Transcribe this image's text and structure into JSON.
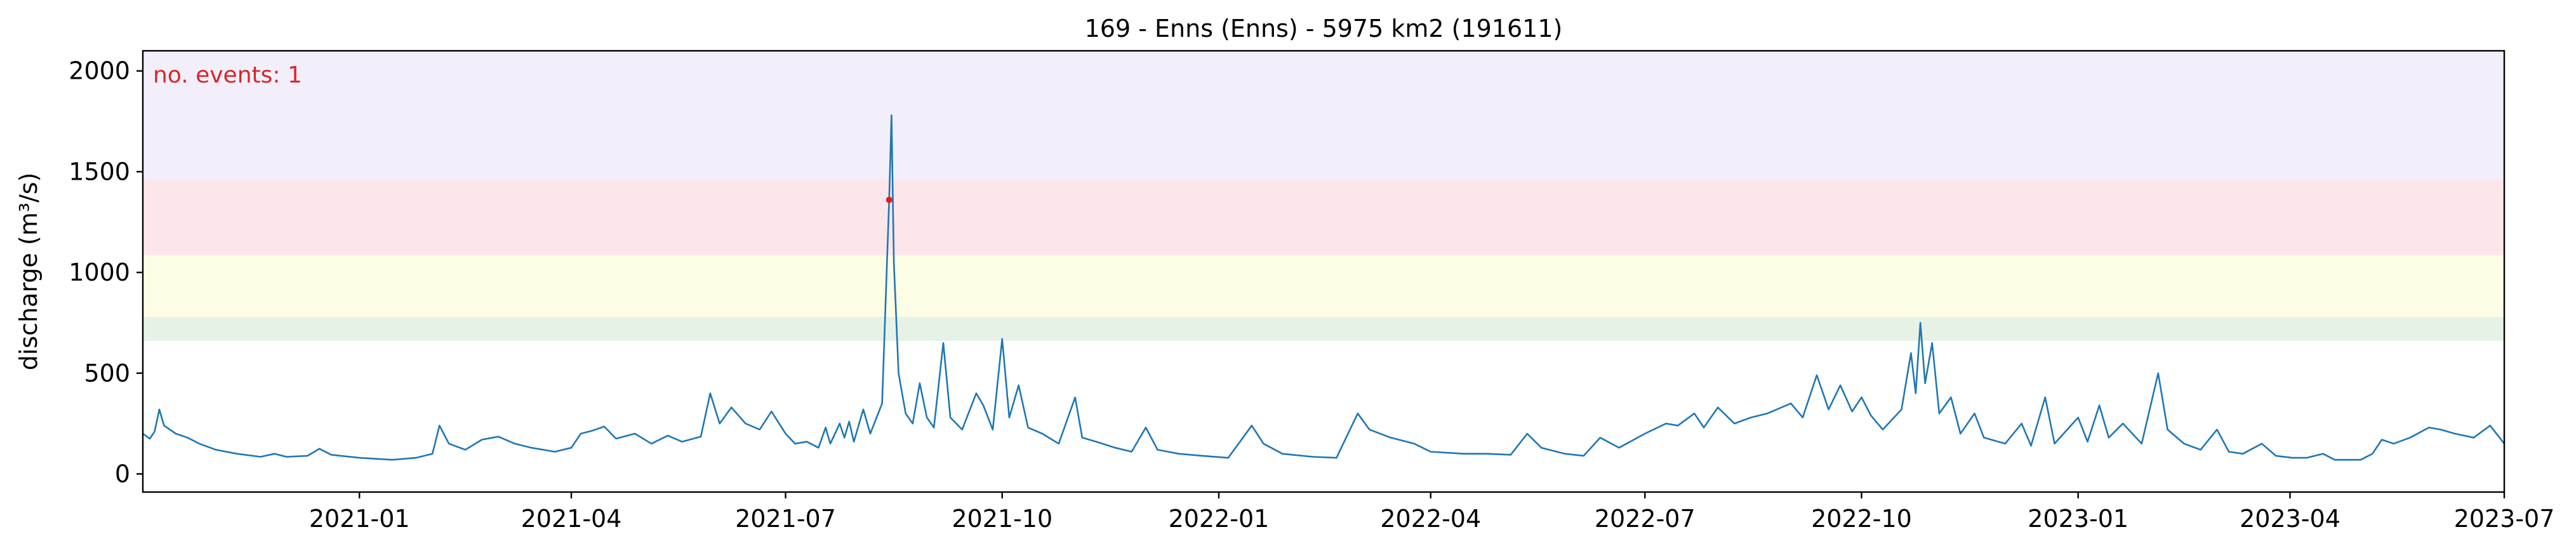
{
  "chart_data": {
    "type": "line",
    "title": "169 - Enns (Enns) - 5975 km2 (191611)",
    "xlabel": "",
    "ylabel": "discharge (m³/s)",
    "xlim": [
      "2020-10-01",
      "2023-07-01"
    ],
    "ylim": [
      -90,
      2100
    ],
    "yticks": [
      0,
      500,
      1000,
      1500,
      2000
    ],
    "xticks": [
      "2021-01-01",
      "2021-04-01",
      "2021-07-01",
      "2021-10-01",
      "2022-01-01",
      "2022-04-01",
      "2022-07-01",
      "2022-10-01",
      "2023-01-01",
      "2023-04-01",
      "2023-07-01"
    ],
    "xtick_labels": [
      "2021-01",
      "2021-04",
      "2021-07",
      "2021-10",
      "2022-01",
      "2022-04",
      "2022-07",
      "2022-10",
      "2023-01",
      "2023-04",
      "2023-07"
    ],
    "threshold_bands": [
      {
        "from": 660,
        "to": 780,
        "color": "#e6f2e6"
      },
      {
        "from": 780,
        "to": 1085,
        "color": "#fdfde6"
      },
      {
        "from": 1085,
        "to": 1460,
        "color": "#fde6e9"
      },
      {
        "from": 1460,
        "to": 2100,
        "color": "#f2effa"
      }
    ],
    "grid": false,
    "legend": "none",
    "series_color": "#1f77b4",
    "series": [
      {
        "points": [
          [
            "2020-10-01",
            200
          ],
          [
            "2020-10-04",
            175
          ],
          [
            "2020-10-06",
            210
          ],
          [
            "2020-10-08",
            320
          ],
          [
            "2020-10-10",
            240
          ],
          [
            "2020-10-15",
            200
          ],
          [
            "2020-10-20",
            180
          ],
          [
            "2020-10-25",
            150
          ],
          [
            "2020-11-01",
            120
          ],
          [
            "2020-11-10",
            100
          ],
          [
            "2020-11-20",
            85
          ],
          [
            "2020-11-26",
            100
          ],
          [
            "2020-12-01",
            85
          ],
          [
            "2020-12-10",
            90
          ],
          [
            "2020-12-15",
            125
          ],
          [
            "2020-12-20",
            95
          ],
          [
            "2021-01-01",
            80
          ],
          [
            "2021-01-15",
            70
          ],
          [
            "2021-01-25",
            80
          ],
          [
            "2021-02-01",
            100
          ],
          [
            "2021-02-04",
            240
          ],
          [
            "2021-02-08",
            150
          ],
          [
            "2021-02-15",
            120
          ],
          [
            "2021-02-22",
            170
          ],
          [
            "2021-03-01",
            185
          ],
          [
            "2021-03-08",
            150
          ],
          [
            "2021-03-15",
            130
          ],
          [
            "2021-03-25",
            110
          ],
          [
            "2021-04-01",
            130
          ],
          [
            "2021-04-05",
            200
          ],
          [
            "2021-04-10",
            215
          ],
          [
            "2021-04-15",
            235
          ],
          [
            "2021-04-20",
            175
          ],
          [
            "2021-04-28",
            200
          ],
          [
            "2021-05-05",
            150
          ],
          [
            "2021-05-12",
            190
          ],
          [
            "2021-05-18",
            160
          ],
          [
            "2021-05-26",
            185
          ],
          [
            "2021-05-30",
            400
          ],
          [
            "2021-06-03",
            250
          ],
          [
            "2021-06-08",
            330
          ],
          [
            "2021-06-14",
            250
          ],
          [
            "2021-06-20",
            220
          ],
          [
            "2021-06-25",
            310
          ],
          [
            "2021-07-01",
            200
          ],
          [
            "2021-07-05",
            150
          ],
          [
            "2021-07-10",
            160
          ],
          [
            "2021-07-15",
            130
          ],
          [
            "2021-07-18",
            230
          ],
          [
            "2021-07-20",
            150
          ],
          [
            "2021-07-24",
            250
          ],
          [
            "2021-07-26",
            180
          ],
          [
            "2021-07-28",
            260
          ],
          [
            "2021-07-30",
            160
          ],
          [
            "2021-08-03",
            320
          ],
          [
            "2021-08-06",
            200
          ],
          [
            "2021-08-11",
            350
          ],
          [
            "2021-08-14",
            1360
          ],
          [
            "2021-08-15",
            1780
          ],
          [
            "2021-08-16",
            1050
          ],
          [
            "2021-08-18",
            500
          ],
          [
            "2021-08-21",
            300
          ],
          [
            "2021-08-24",
            250
          ],
          [
            "2021-08-27",
            450
          ],
          [
            "2021-08-30",
            280
          ],
          [
            "2021-09-02",
            230
          ],
          [
            "2021-09-06",
            650
          ],
          [
            "2021-09-09",
            280
          ],
          [
            "2021-09-14",
            220
          ],
          [
            "2021-09-20",
            400
          ],
          [
            "2021-09-23",
            340
          ],
          [
            "2021-09-27",
            220
          ],
          [
            "2021-10-01",
            670
          ],
          [
            "2021-10-04",
            280
          ],
          [
            "2021-10-08",
            440
          ],
          [
            "2021-10-12",
            230
          ],
          [
            "2021-10-18",
            200
          ],
          [
            "2021-10-25",
            150
          ],
          [
            "2021-11-01",
            380
          ],
          [
            "2021-11-04",
            180
          ],
          [
            "2021-11-10",
            160
          ],
          [
            "2021-11-18",
            130
          ],
          [
            "2021-11-25",
            110
          ],
          [
            "2021-12-01",
            230
          ],
          [
            "2021-12-06",
            120
          ],
          [
            "2021-12-15",
            100
          ],
          [
            "2021-12-25",
            90
          ],
          [
            "2022-01-05",
            80
          ],
          [
            "2022-01-15",
            240
          ],
          [
            "2022-01-20",
            150
          ],
          [
            "2022-01-28",
            100
          ],
          [
            "2022-02-10",
            85
          ],
          [
            "2022-02-20",
            80
          ],
          [
            "2022-03-01",
            300
          ],
          [
            "2022-03-06",
            220
          ],
          [
            "2022-03-15",
            180
          ],
          [
            "2022-03-25",
            150
          ],
          [
            "2022-04-01",
            110
          ],
          [
            "2022-04-15",
            100
          ],
          [
            "2022-04-25",
            100
          ],
          [
            "2022-05-05",
            95
          ],
          [
            "2022-05-12",
            200
          ],
          [
            "2022-05-18",
            130
          ],
          [
            "2022-05-28",
            100
          ],
          [
            "2022-06-05",
            90
          ],
          [
            "2022-06-12",
            180
          ],
          [
            "2022-06-20",
            130
          ],
          [
            "2022-07-01",
            200
          ],
          [
            "2022-07-10",
            250
          ],
          [
            "2022-07-15",
            240
          ],
          [
            "2022-07-22",
            300
          ],
          [
            "2022-07-26",
            230
          ],
          [
            "2022-08-01",
            330
          ],
          [
            "2022-08-08",
            250
          ],
          [
            "2022-08-15",
            280
          ],
          [
            "2022-08-22",
            300
          ],
          [
            "2022-09-01",
            350
          ],
          [
            "2022-09-06",
            280
          ],
          [
            "2022-09-12",
            490
          ],
          [
            "2022-09-17",
            320
          ],
          [
            "2022-09-22",
            440
          ],
          [
            "2022-09-27",
            310
          ],
          [
            "2022-10-01",
            380
          ],
          [
            "2022-10-05",
            290
          ],
          [
            "2022-10-10",
            220
          ],
          [
            "2022-10-18",
            320
          ],
          [
            "2022-10-22",
            600
          ],
          [
            "2022-10-24",
            400
          ],
          [
            "2022-10-26",
            750
          ],
          [
            "2022-10-28",
            450
          ],
          [
            "2022-10-31",
            650
          ],
          [
            "2022-11-03",
            300
          ],
          [
            "2022-11-08",
            380
          ],
          [
            "2022-11-12",
            200
          ],
          [
            "2022-11-18",
            300
          ],
          [
            "2022-11-22",
            180
          ],
          [
            "2022-12-01",
            150
          ],
          [
            "2022-12-08",
            250
          ],
          [
            "2022-12-12",
            140
          ],
          [
            "2022-12-18",
            380
          ],
          [
            "2022-12-22",
            150
          ],
          [
            "2023-01-01",
            280
          ],
          [
            "2023-01-05",
            160
          ],
          [
            "2023-01-10",
            340
          ],
          [
            "2023-01-14",
            180
          ],
          [
            "2023-01-20",
            250
          ],
          [
            "2023-01-28",
            150
          ],
          [
            "2023-02-04",
            500
          ],
          [
            "2023-02-08",
            220
          ],
          [
            "2023-02-15",
            150
          ],
          [
            "2023-02-22",
            120
          ],
          [
            "2023-03-01",
            220
          ],
          [
            "2023-03-06",
            110
          ],
          [
            "2023-03-12",
            100
          ],
          [
            "2023-03-20",
            150
          ],
          [
            "2023-03-26",
            90
          ],
          [
            "2023-04-02",
            80
          ],
          [
            "2023-04-08",
            80
          ],
          [
            "2023-04-15",
            100
          ],
          [
            "2023-04-20",
            70
          ],
          [
            "2023-05-01",
            70
          ],
          [
            "2023-05-06",
            100
          ],
          [
            "2023-05-10",
            170
          ],
          [
            "2023-05-15",
            150
          ],
          [
            "2023-05-22",
            180
          ],
          [
            "2023-05-30",
            230
          ],
          [
            "2023-06-04",
            220
          ],
          [
            "2023-06-10",
            200
          ],
          [
            "2023-06-18",
            180
          ],
          [
            "2023-06-25",
            240
          ],
          [
            "2023-07-01",
            150
          ]
        ]
      }
    ],
    "event_markers": [
      {
        "x": "2021-08-14",
        "y": 1360,
        "color": "#e02020"
      }
    ],
    "annotation": {
      "text": "no. events: 1",
      "color": "#d62728",
      "position": "top-left"
    }
  }
}
